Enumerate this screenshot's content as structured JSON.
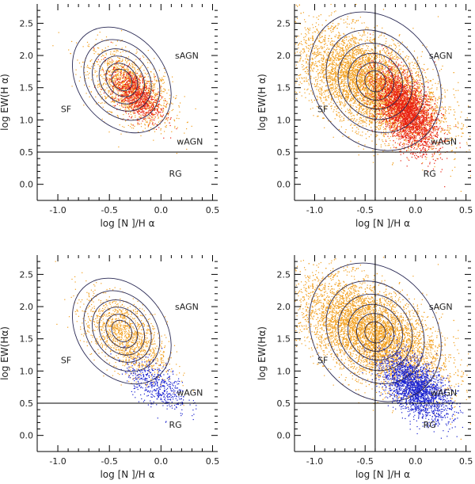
{
  "chart_data": [
    {
      "type": "scatter",
      "panel": "top-left",
      "xlabel": "log [N ]/H α",
      "ylabel": "log EW(H α)",
      "xlim": [
        -1.2,
        0.55
      ],
      "ylim": [
        -0.25,
        2.8
      ],
      "x_ticks": [
        "-1.0",
        "-0.5",
        "0.0",
        "0.5"
      ],
      "y_ticks": [
        "0.0",
        "0.5",
        "1.0",
        "1.5",
        "2.0",
        "2.5"
      ],
      "hline_y": 0.5,
      "vline_x": null,
      "region_labels": [
        {
          "text": "sAGN",
          "x": 0.25,
          "y": 1.95
        },
        {
          "text": "SF",
          "x": -0.92,
          "y": 1.12
        },
        {
          "text": "wAGN",
          "x": 0.28,
          "y": 0.62
        },
        {
          "text": "RG",
          "x": 0.14,
          "y": 0.12
        }
      ],
      "series": [
        {
          "color": "#f2a020",
          "center": [
            -0.3,
            1.5
          ],
          "spread": [
            0.2,
            0.3
          ],
          "points": 1400
        },
        {
          "color": "#e82010",
          "center": [
            -0.25,
            1.4
          ],
          "spread": [
            0.12,
            0.2
          ],
          "points": 900
        }
      ],
      "contours": {
        "center": [
          -0.38,
          1.62
        ],
        "radii": [
          [
            0.42,
            0.9
          ],
          [
            0.33,
            0.68
          ],
          [
            0.26,
            0.52
          ],
          [
            0.2,
            0.4
          ],
          [
            0.14,
            0.28
          ],
          [
            0.09,
            0.18
          ]
        ],
        "tilt_deg": -38
      }
    },
    {
      "type": "scatter",
      "panel": "top-right",
      "xlabel": "log [N ]/H α",
      "ylabel": "log EW(H α)",
      "xlim": [
        -1.2,
        0.55
      ],
      "ylim": [
        -0.25,
        2.8
      ],
      "x_ticks": [
        "-1.0",
        "-0.5",
        "0.0",
        "0.5"
      ],
      "y_ticks": [
        "0.0",
        "0.5",
        "1.0",
        "1.5",
        "2.0",
        "2.5"
      ],
      "hline_y": 0.5,
      "vline_x": -0.4,
      "region_labels": [
        {
          "text": "sAGN",
          "x": 0.25,
          "y": 1.95
        },
        {
          "text": "SF",
          "x": -0.92,
          "y": 1.12
        },
        {
          "text": "wAGN",
          "x": 0.28,
          "y": 0.62
        },
        {
          "text": "RG",
          "x": 0.14,
          "y": 0.12
        }
      ],
      "series": [
        {
          "color": "#f2a020",
          "center": [
            -0.45,
            1.55
          ],
          "spread": [
            0.35,
            0.42
          ],
          "points": 6000
        },
        {
          "color": "#e82010",
          "center": [
            -0.1,
            1.15
          ],
          "spread": [
            0.15,
            0.3
          ],
          "points": 3000
        }
      ],
      "contours": {
        "center": [
          -0.4,
          1.6
        ],
        "radii": [
          [
            0.6,
            1.15
          ],
          [
            0.45,
            0.85
          ],
          [
            0.35,
            0.62
          ],
          [
            0.26,
            0.45
          ],
          [
            0.18,
            0.3
          ],
          [
            0.1,
            0.17
          ]
        ],
        "tilt_deg": -38
      }
    },
    {
      "type": "scatter",
      "panel": "bottom-left",
      "xlabel": "log [N ]/H α",
      "ylabel": "log EW(Hα)",
      "xlim": [
        -1.2,
        0.55
      ],
      "ylim": [
        -0.25,
        2.8
      ],
      "x_ticks": [
        "-1.0",
        "-0.5",
        "0.0",
        "0.5"
      ],
      "y_ticks": [
        "0.0",
        "0.5",
        "1.0",
        "1.5",
        "2.0",
        "2.5"
      ],
      "hline_y": 0.5,
      "vline_x": null,
      "region_labels": [
        {
          "text": "sAGN",
          "x": 0.25,
          "y": 1.95
        },
        {
          "text": "SF",
          "x": -0.92,
          "y": 1.12
        },
        {
          "text": "wAGN",
          "x": 0.28,
          "y": 0.62
        },
        {
          "text": "RG",
          "x": 0.14,
          "y": 0.12
        }
      ],
      "series": [
        {
          "color": "#f2a020",
          "center": [
            -0.35,
            1.55
          ],
          "spread": [
            0.2,
            0.32
          ],
          "points": 1400
        },
        {
          "color": "#1820d0",
          "center": [
            -0.05,
            0.8
          ],
          "spread": [
            0.15,
            0.2
          ],
          "points": 500
        }
      ],
      "contours": {
        "center": [
          -0.38,
          1.62
        ],
        "radii": [
          [
            0.42,
            0.9
          ],
          [
            0.33,
            0.68
          ],
          [
            0.26,
            0.52
          ],
          [
            0.2,
            0.4
          ],
          [
            0.14,
            0.28
          ],
          [
            0.09,
            0.18
          ]
        ],
        "tilt_deg": -38
      }
    },
    {
      "type": "scatter",
      "panel": "bottom-right",
      "xlabel": "log [N ]/H α",
      "ylabel": "log EW(Hα)",
      "xlim": [
        -1.2,
        0.55
      ],
      "ylim": [
        -0.25,
        2.8
      ],
      "x_ticks": [
        "-1.0",
        "-0.5",
        "0.0",
        "0.5"
      ],
      "y_ticks": [
        "0.0",
        "0.5",
        "1.0",
        "1.5",
        "2.0",
        "2.5"
      ],
      "hline_y": 0.5,
      "vline_x": -0.4,
      "region_labels": [
        {
          "text": "sAGN",
          "x": 0.25,
          "y": 1.95
        },
        {
          "text": "SF",
          "x": -0.92,
          "y": 1.12
        },
        {
          "text": "wAGN",
          "x": 0.28,
          "y": 0.62
        },
        {
          "text": "RG",
          "x": 0.14,
          "y": 0.12
        }
      ],
      "series": [
        {
          "color": "#f2a020",
          "center": [
            -0.45,
            1.6
          ],
          "spread": [
            0.35,
            0.42
          ],
          "points": 6000
        },
        {
          "color": "#1820d0",
          "center": [
            0.0,
            0.75
          ],
          "spread": [
            0.17,
            0.25
          ],
          "points": 2200
        }
      ],
      "contours": {
        "center": [
          -0.4,
          1.6
        ],
        "radii": [
          [
            0.6,
            1.15
          ],
          [
            0.45,
            0.85
          ],
          [
            0.35,
            0.62
          ],
          [
            0.26,
            0.45
          ],
          [
            0.18,
            0.3
          ],
          [
            0.1,
            0.17
          ]
        ],
        "tilt_deg": -38
      }
    }
  ]
}
